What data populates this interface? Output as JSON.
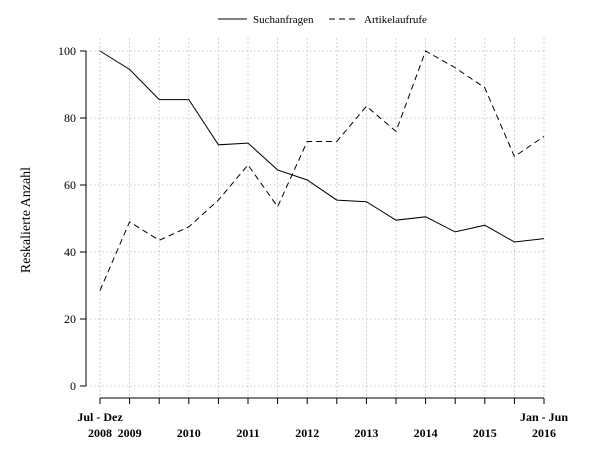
{
  "chart_data": {
    "type": "line",
    "ylabel": "Reskalierte Anzahl",
    "ylim": [
      0,
      100
    ],
    "yticks": [
      0,
      20,
      40,
      60,
      80,
      100
    ],
    "x": [
      0,
      1,
      2,
      3,
      4,
      5,
      6,
      7,
      8,
      9,
      10,
      11,
      12,
      13,
      14,
      15
    ],
    "x_tick_labels": [
      {
        "i": 0,
        "lines": [
          "Jul - Dez",
          "2008"
        ]
      },
      {
        "i": 1,
        "lines": [
          "",
          "2009"
        ]
      },
      {
        "i": 3,
        "lines": [
          "",
          "2010"
        ]
      },
      {
        "i": 5,
        "lines": [
          "",
          "2011"
        ]
      },
      {
        "i": 7,
        "lines": [
          "",
          "2012"
        ]
      },
      {
        "i": 9,
        "lines": [
          "",
          "2013"
        ]
      },
      {
        "i": 11,
        "lines": [
          "",
          "2014"
        ]
      },
      {
        "i": 13,
        "lines": [
          "",
          "2015"
        ]
      },
      {
        "i": 15,
        "lines": [
          "Jan - Jun",
          "2016"
        ]
      }
    ],
    "grid": true,
    "legend_position": "top",
    "series": [
      {
        "name": "Suchanfragen",
        "style": "solid",
        "values": [
          100,
          94.5,
          85.5,
          85.5,
          72,
          72.5,
          64.5,
          61.5,
          55.5,
          55,
          49.5,
          50.5,
          46,
          48,
          43,
          44
        ]
      },
      {
        "name": "Artikelaufrufe",
        "style": "dashed",
        "values": [
          28.5,
          49,
          43.5,
          47.5,
          55.5,
          66,
          53.5,
          73,
          73,
          83.5,
          76,
          100,
          95,
          89,
          68.5,
          74.5
        ]
      }
    ]
  }
}
